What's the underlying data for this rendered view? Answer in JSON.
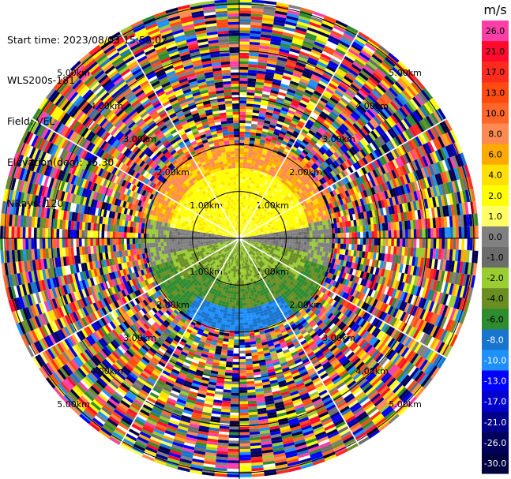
{
  "header": {
    "start_time": "Start time: 2023/08/03 15:58:02",
    "instrument": "WLS200s-181",
    "field": "Field: VEL",
    "elevation": "Elevation(deg): 35.30",
    "nrays": "NRays: 120"
  },
  "chart_data": {
    "type": "heatmap",
    "projection": "polar (PPI scan)",
    "field": "VEL",
    "colorbar": {
      "unit": "m/s",
      "ticks": [
        "26.0",
        "21.0",
        "17.0",
        "13.0",
        "10.0",
        "8.0",
        "6.0",
        "4.0",
        "2.0",
        "1.0",
        "0.0",
        "-1.0",
        "-2.0",
        "-4.0",
        "-6.0",
        "-8.0",
        "-10.0",
        "-13.0",
        "-17.0",
        "-21.0",
        "-26.0",
        "-30.0"
      ],
      "colors": [
        "#ff3fa8",
        "#ff0b2d",
        "#ff2a1e",
        "#ff4b10",
        "#ff6628",
        "#ff8a52",
        "#ffaa00",
        "#ffe000",
        "#ffff00",
        "#ffff66",
        "#808080",
        "#6c6c6c",
        "#9acd32",
        "#6b8e23",
        "#2e8b2e",
        "#1874cd",
        "#1e90ff",
        "#0000ff",
        "#0000cd",
        "#00008b",
        "#00005a",
        "#000040"
      ]
    },
    "range_rings": [
      "1.00km",
      "2.00km",
      "3.00km",
      "4.00km",
      "5.00km"
    ],
    "range_ring_values_km": [
      1,
      2,
      3,
      4,
      5
    ],
    "n_rays": 120,
    "max_range_km": 5.1,
    "crosshair_lines": true
  }
}
